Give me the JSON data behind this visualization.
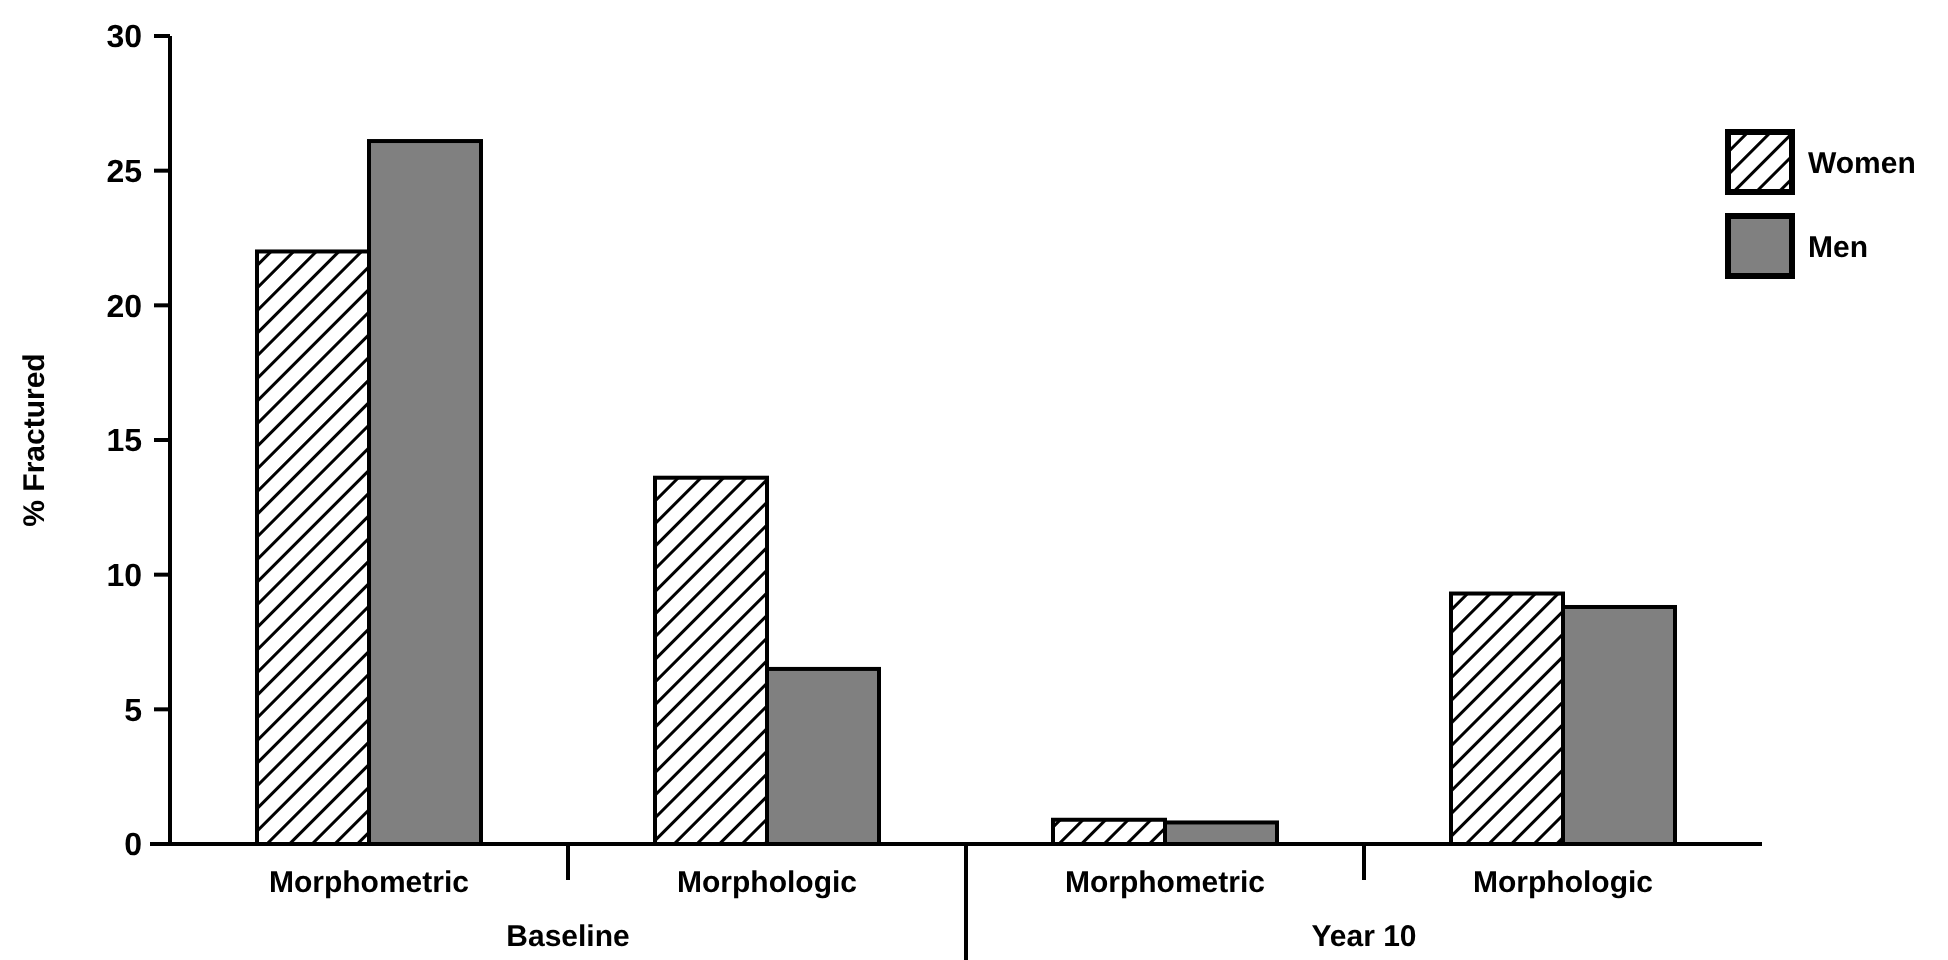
{
  "chart_data": {
    "type": "bar",
    "ylabel": "% Fractured",
    "categories": [
      "Morphometric",
      "Morphologic",
      "Morphometric",
      "Morphologic"
    ],
    "series": [
      {
        "name": "Women",
        "color": "#000000",
        "values": [
          22.0,
          13.6,
          0.9,
          9.3
        ]
      },
      {
        "name": "Men",
        "color": "#808080",
        "values": [
          26.1,
          6.5,
          0.8,
          8.8
        ]
      }
    ],
    "ylim": [
      0,
      30
    ],
    "yticks": [
      0,
      5,
      10,
      15,
      20,
      25,
      30
    ],
    "grid": false,
    "legend": "top right",
    "annotations": [
      "Baseline",
      "Year 10"
    ]
  }
}
